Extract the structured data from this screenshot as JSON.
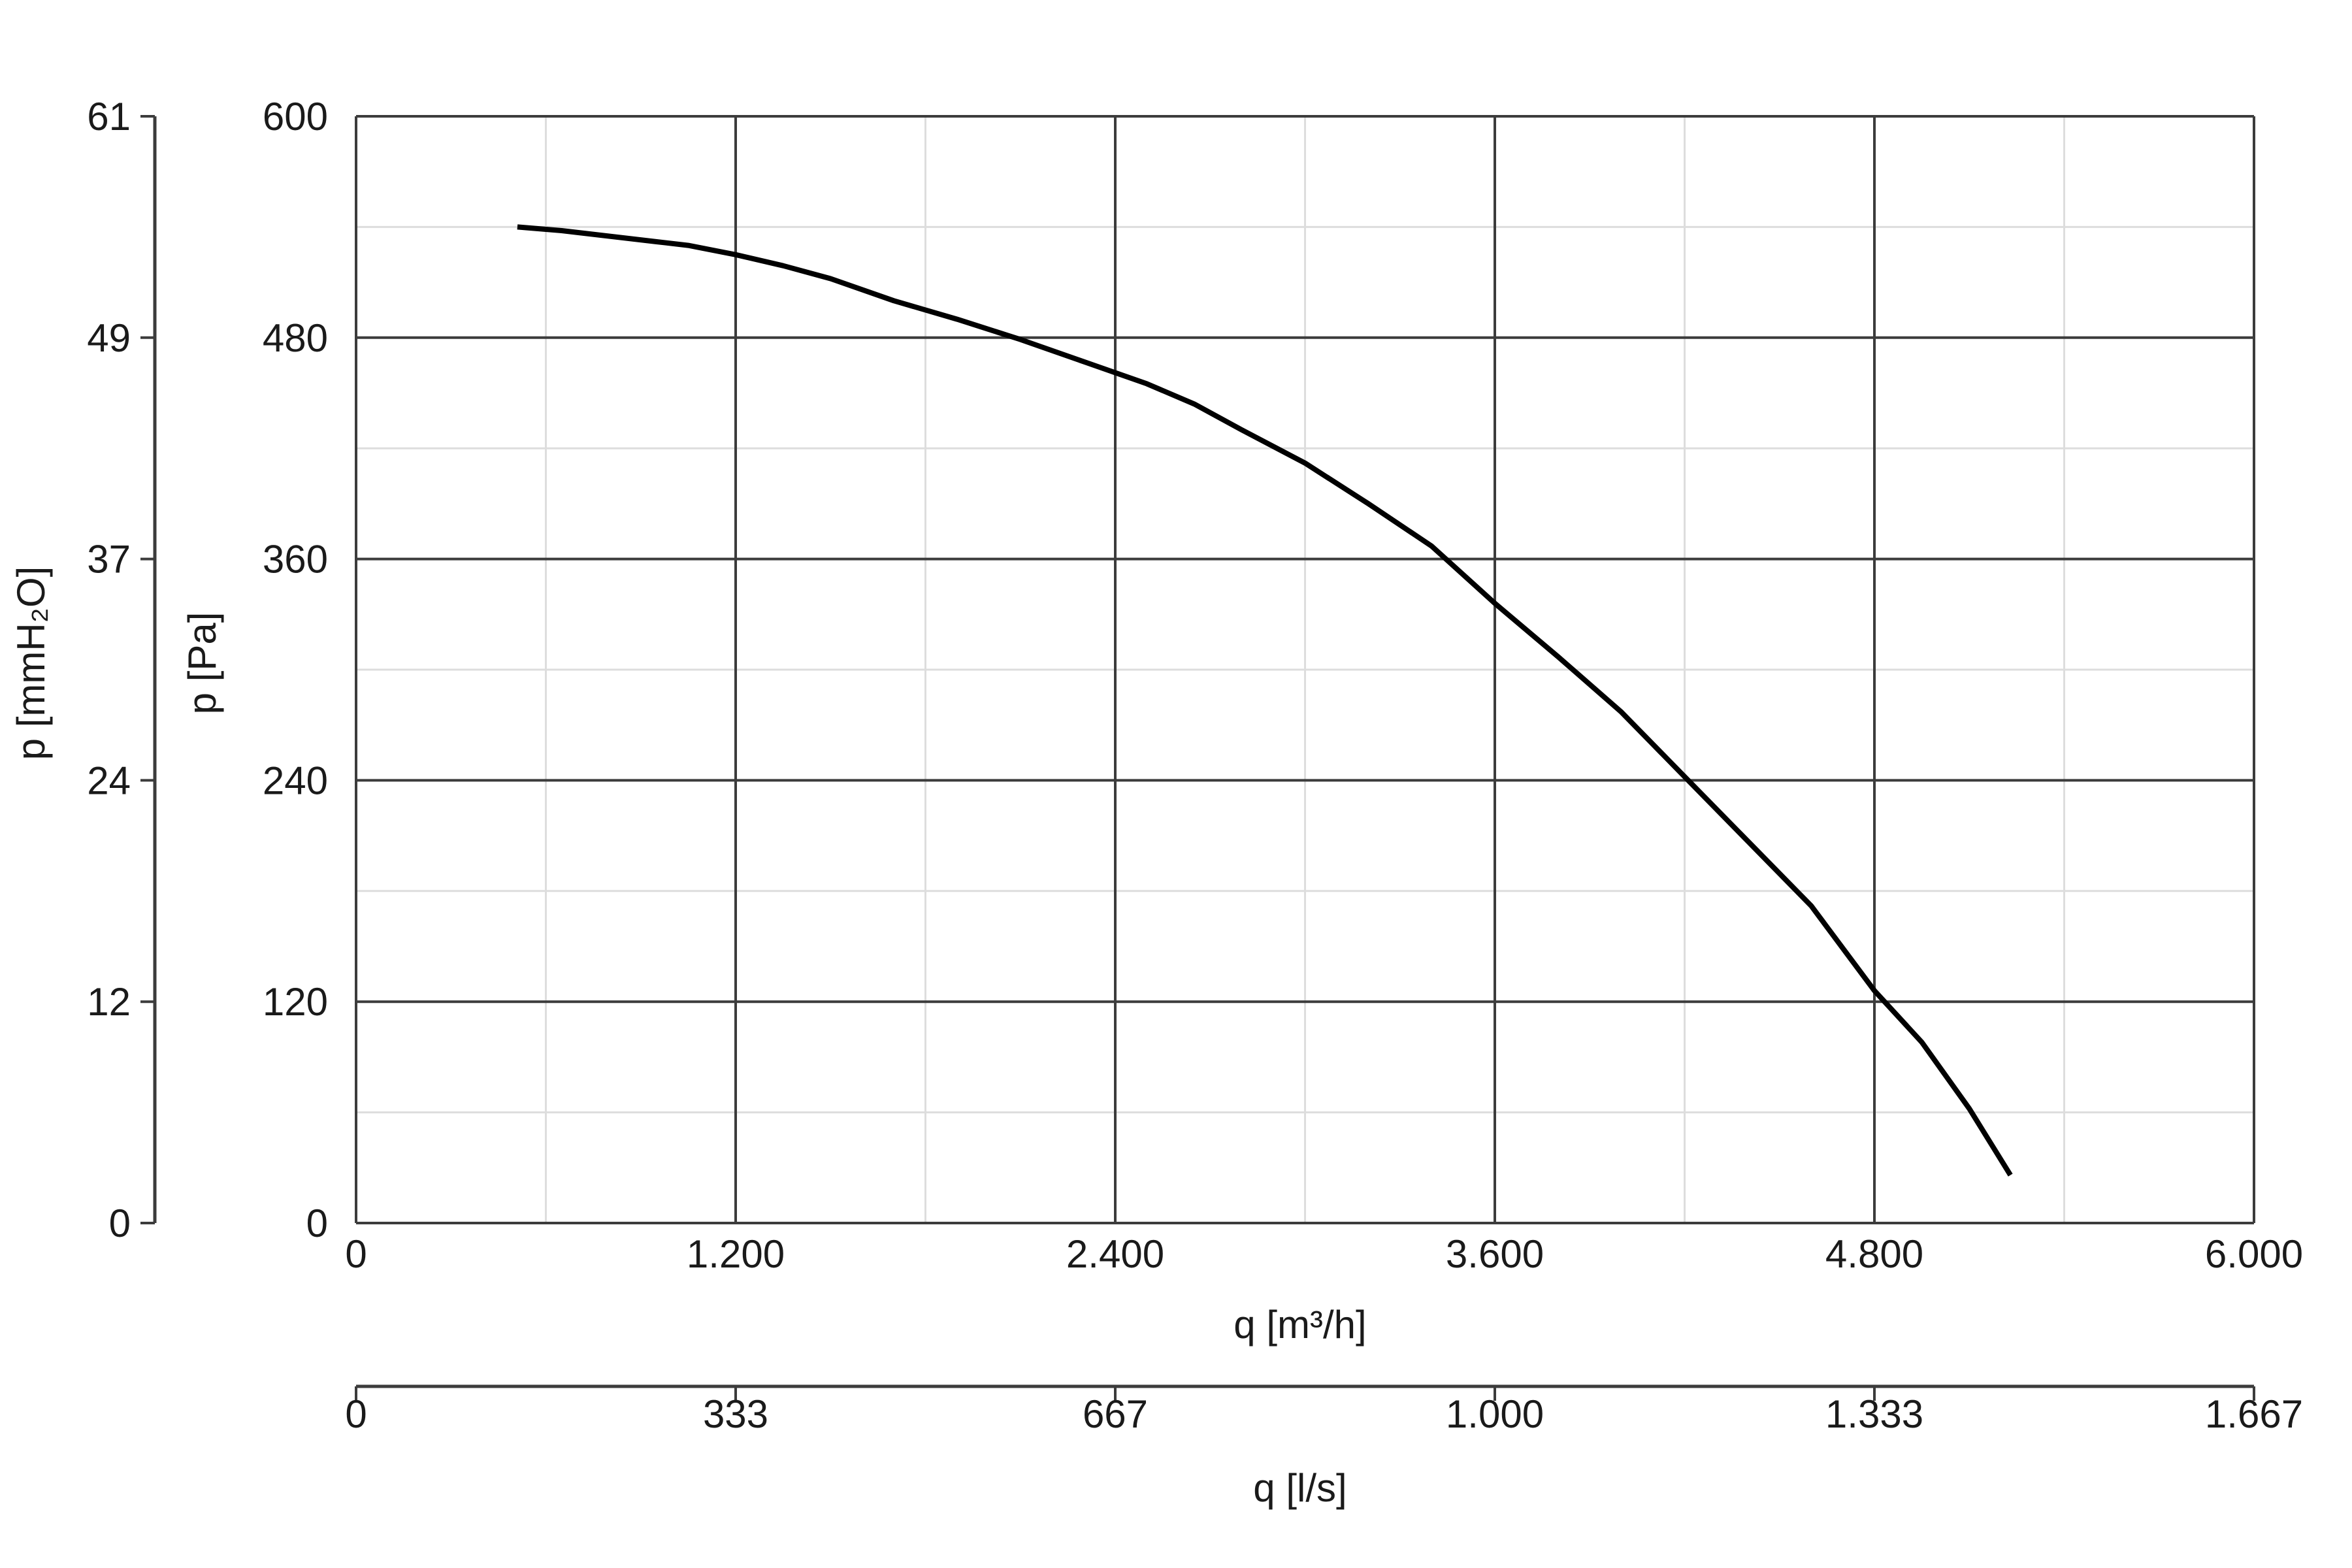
{
  "colors": {
    "curve": "#000000",
    "major_grid": "#3c3c3c",
    "minor_grid": "#dddddd",
    "axis": "#3c3c3c",
    "text": "#1a1a1a",
    "background": "#ffffff"
  },
  "chart_data": {
    "type": "line",
    "title": "",
    "xlabel": "q [m³/h]",
    "ylabel": "p [Pa]",
    "xlim": [
      0,
      6000
    ],
    "ylim": [
      0,
      600
    ],
    "x_ticks": [
      0,
      1200,
      2400,
      3600,
      4800,
      6000
    ],
    "x_tick_labels": [
      "0",
      "1.200",
      "2.400",
      "3.600",
      "4.800",
      "6.000"
    ],
    "y_ticks": [
      0,
      120,
      240,
      360,
      480,
      600
    ],
    "y_tick_labels": [
      "0",
      "120",
      "240",
      "360",
      "480",
      "600"
    ],
    "minor_x_ticks": [
      600,
      1800,
      3000,
      4200,
      5400
    ],
    "minor_y_ticks": [
      60,
      180,
      300,
      420,
      540
    ],
    "grid": true,
    "secondary_x_axis": {
      "label": "q [l/s]",
      "ticks": [
        0,
        1200,
        2400,
        3600,
        4800,
        6000
      ],
      "tick_labels": [
        "0",
        "333",
        "667",
        "1.000",
        "1.333",
        "1.667"
      ]
    },
    "secondary_y_axis": {
      "label": "p [mmH₂O]",
      "ticks": [
        0,
        120,
        240,
        360,
        480,
        600
      ],
      "tick_labels": [
        "0",
        "12",
        "24",
        "37",
        "49",
        "61"
      ]
    },
    "series": [
      {
        "x": [
          510,
          650,
          800,
          950,
          1050,
          1200,
          1350,
          1500,
          1700,
          1900,
          2100,
          2300,
          2500,
          2650,
          2800,
          3000,
          3200,
          3400,
          3600,
          3800,
          4000,
          4200,
          4400,
          4600,
          4800,
          4950,
          5100,
          5230
        ],
        "y": [
          540,
          538,
          535,
          532,
          530,
          525,
          519,
          512,
          500,
          490,
          479,
          467,
          455,
          444,
          430,
          412,
          390,
          367,
          336,
          307,
          277,
          242,
          207,
          172,
          126,
          98,
          62,
          26
        ]
      }
    ]
  }
}
